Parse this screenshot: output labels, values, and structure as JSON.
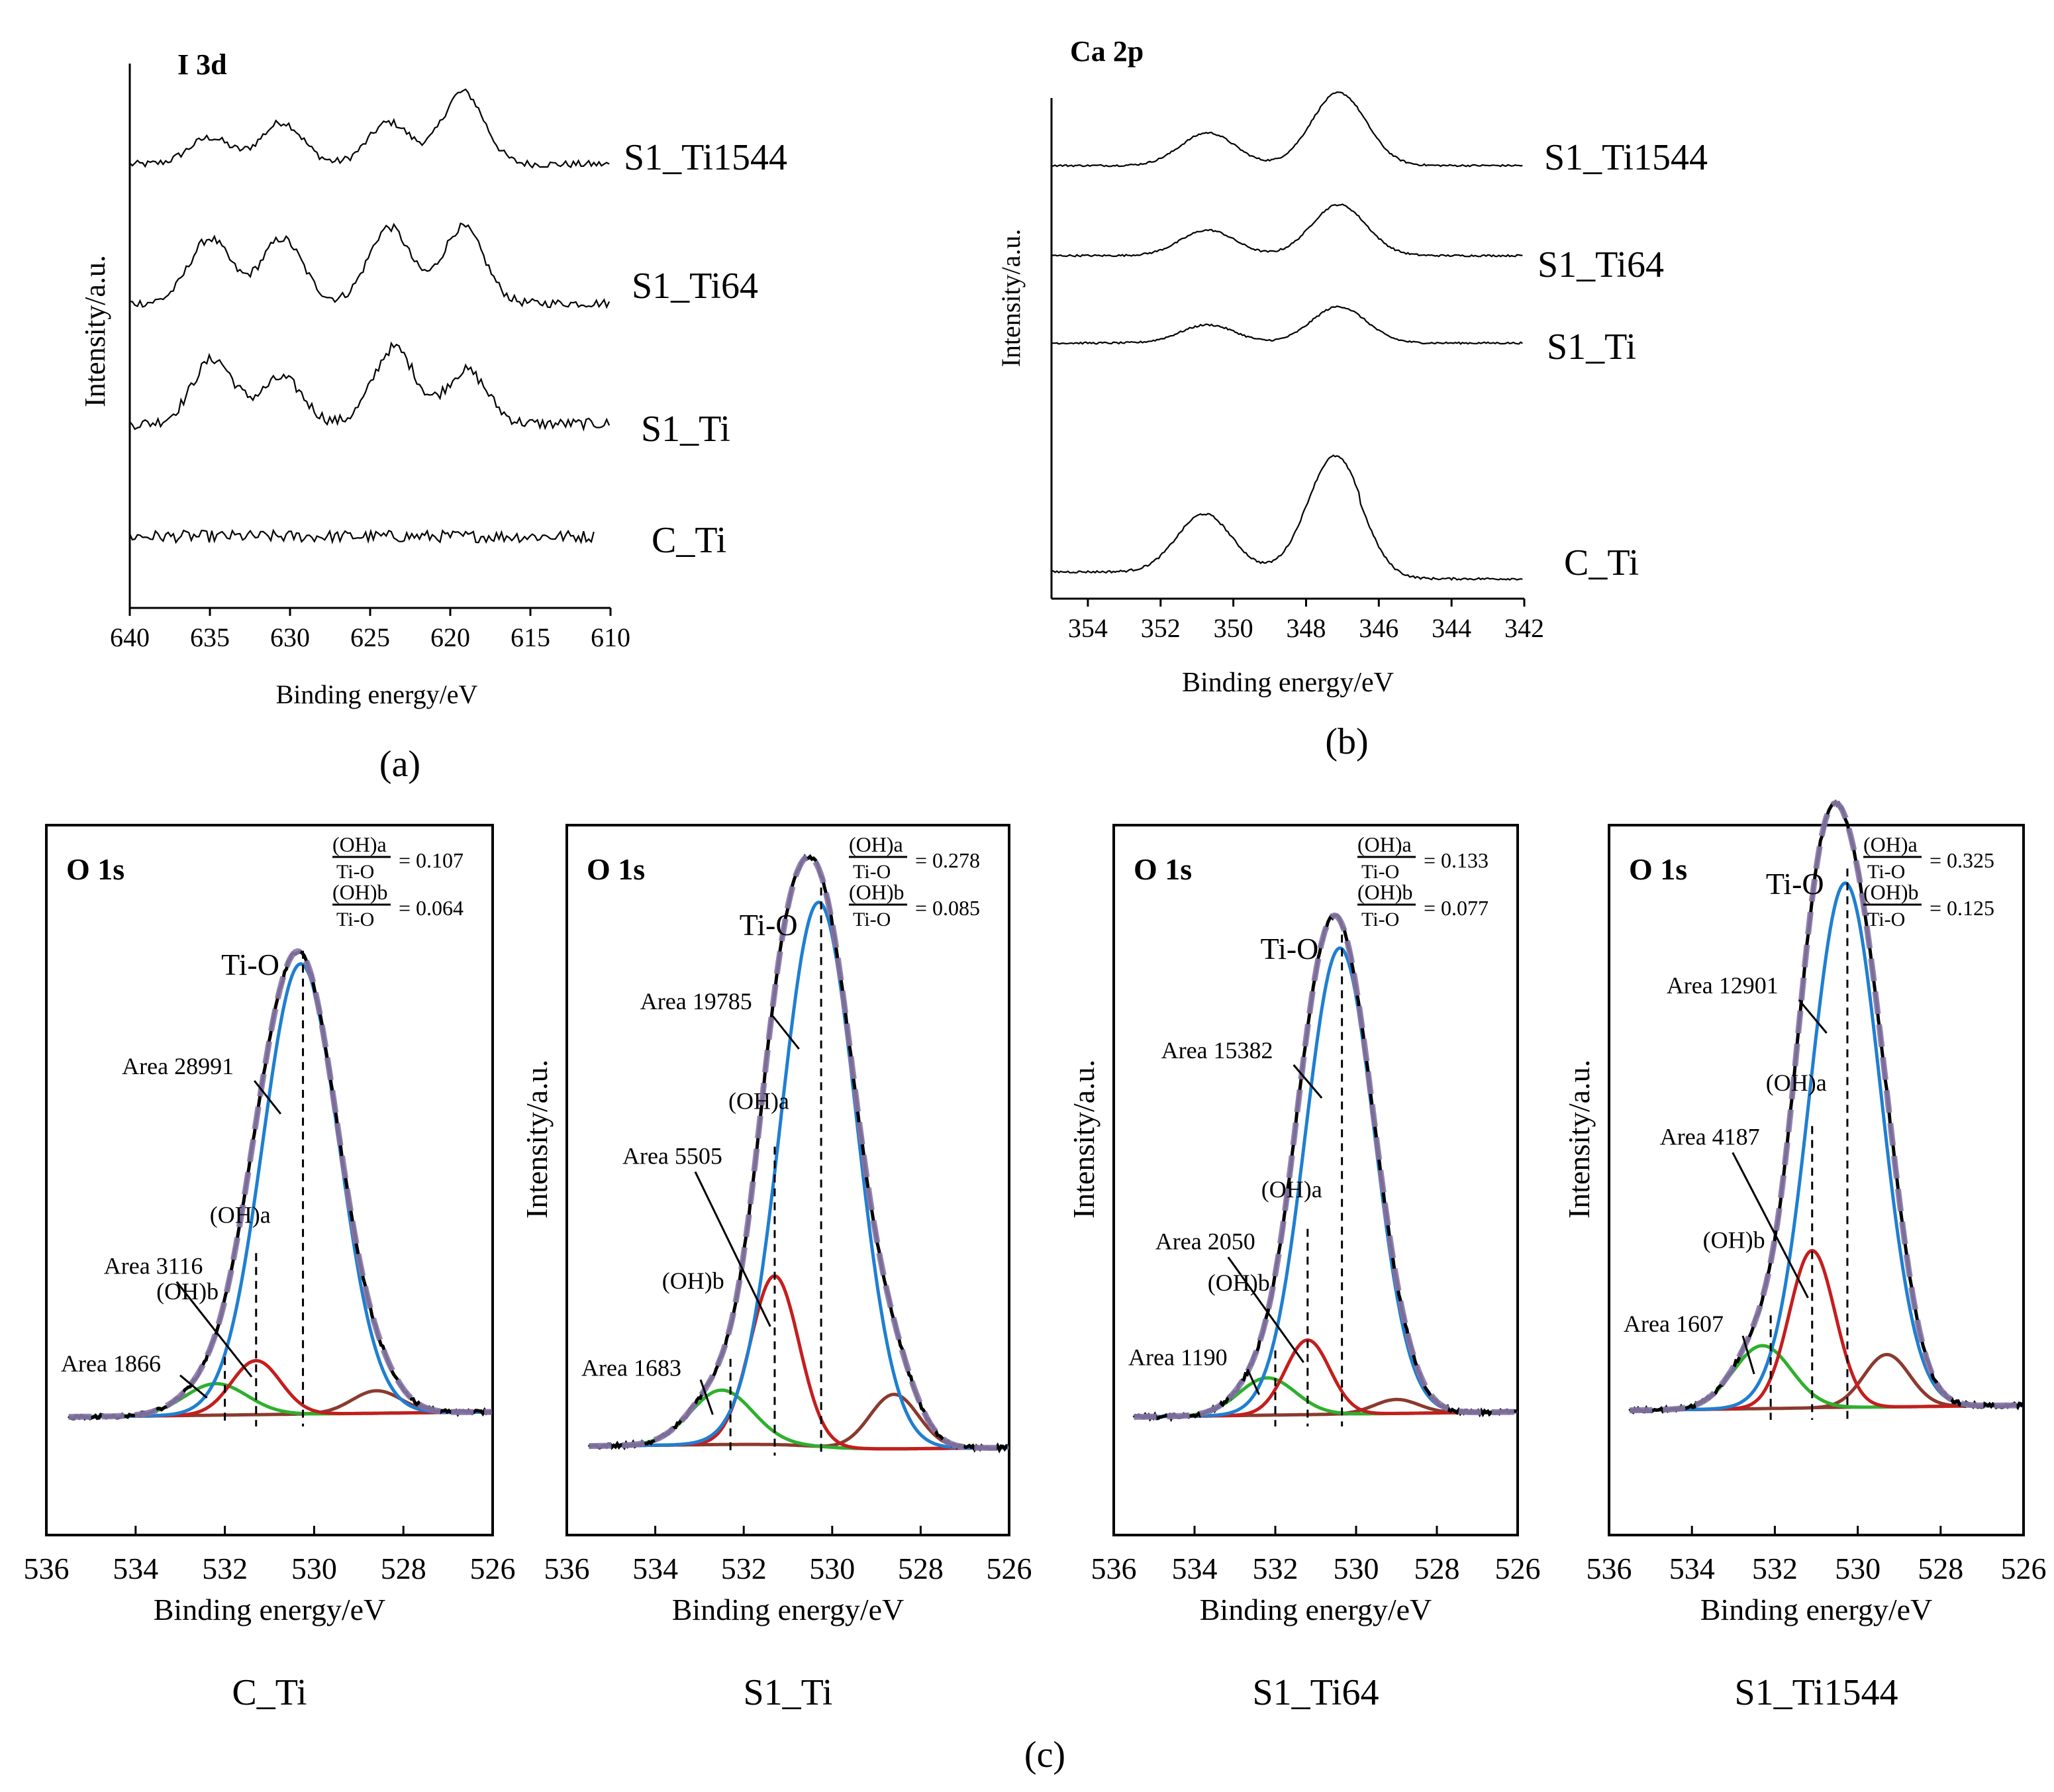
{
  "chart_data": [
    {
      "panel": "a",
      "type": "line",
      "subtitle_letter": "(a)",
      "title": "I 3d",
      "xlabel": "Binding energy/eV",
      "ylabel": "Intensity/a.u.",
      "xlim": [
        640,
        610
      ],
      "xticks": [
        "640",
        "635",
        "630",
        "625",
        "620",
        "615",
        "610"
      ],
      "series": [
        {
          "name": "S1_Ti1544",
          "x_end": 610,
          "peaks": [
            [
              635,
              0.35
            ],
            [
              630.5,
              0.55
            ],
            [
              623.8,
              0.55
            ],
            [
              619.2,
              0.95
            ]
          ],
          "noise": 0.06
        },
        {
          "name": "S1_Ti64",
          "x_end": 610,
          "peaks": [
            [
              635,
              0.85
            ],
            [
              630.5,
              0.85
            ],
            [
              623.8,
              1.0
            ],
            [
              619.2,
              1.0
            ]
          ],
          "noise": 0.07
        },
        {
          "name": "S1_Ti",
          "x_end": 610,
          "peaks": [
            [
              634.8,
              0.85
            ],
            [
              630.5,
              0.6
            ],
            [
              623.5,
              1.0
            ],
            [
              619.0,
              0.7
            ]
          ],
          "noise": 0.09
        },
        {
          "name": "C_Ti",
          "x_end": 611,
          "peaks": [],
          "noise": 0.1
        }
      ]
    },
    {
      "panel": "b",
      "type": "line",
      "subtitle_letter": "(b)",
      "title": "Ca 2p",
      "xlabel": "Binding energy/eV",
      "ylabel": "Intensity/a.u.",
      "xlim": [
        355,
        342
      ],
      "xticks": [
        "354",
        "352",
        "350",
        "348",
        "346",
        "344",
        "342"
      ],
      "series": [
        {
          "name": "S1_Ti1544",
          "peaks": [
            [
              350.7,
              0.45
            ],
            [
              347.1,
              1.0
            ]
          ]
        },
        {
          "name": "S1_Ti64",
          "peaks": [
            [
              350.7,
              0.35
            ],
            [
              347.1,
              0.7
            ]
          ]
        },
        {
          "name": "S1_Ti",
          "peaks": [
            [
              350.7,
              0.25
            ],
            [
              347.1,
              0.5
            ]
          ]
        },
        {
          "name": "C_Ti",
          "peaks": [
            [
              350.8,
              1.0
            ],
            [
              347.2,
              2.0
            ]
          ]
        }
      ]
    },
    {
      "panel": "c",
      "type": "line",
      "subtitle_letter": "(c)",
      "title": "O 1s",
      "xlabel": "Binding energy/eV",
      "ylabel": "Intensity/a.u.",
      "xlim": [
        536,
        526
      ],
      "xticks": [
        "536",
        "534",
        "532",
        "530",
        "528",
        "526"
      ],
      "tio_label": "Ti-O",
      "oha_label": "(OH)a",
      "ohb_label": "(OH)b",
      "ratio_num_a": "(OH)a",
      "ratio_num_b": "(OH)b",
      "ratio_den": "Ti-O",
      "samples": [
        {
          "name": "C_Ti",
          "ratio_a": "= 0.107",
          "ratio_b": "= 0.064",
          "area_tio": "Area 28991",
          "area_oha": "Area 3116",
          "area_ohb": "Area 1866",
          "tio": [
            530.3,
            1.0
          ],
          "oha": [
            531.3,
            0.12
          ],
          "ohb": [
            532.2,
            0.07
          ],
          "sub": [
            528.6,
            0.05
          ]
        },
        {
          "name": "S1_Ti",
          "ratio_a": "= 0.278",
          "ratio_b": "= 0.085",
          "area_tio": "Area 19785",
          "area_oha": "Area 5505",
          "area_ohb": "Area 1683",
          "tio": [
            530.3,
            1.0
          ],
          "oha": [
            531.3,
            0.31
          ],
          "ohb": [
            532.5,
            0.1
          ],
          "sub": [
            528.6,
            0.1
          ]
        },
        {
          "name": "S1_Ti64",
          "ratio_a": "= 0.133",
          "ratio_b": "= 0.077",
          "area_tio": "Area 15382",
          "area_oha": "Area 2050",
          "area_ohb": "Area 1190",
          "tio": [
            530.4,
            1.0
          ],
          "oha": [
            531.2,
            0.16
          ],
          "ohb": [
            532.2,
            0.08
          ],
          "sub": [
            529.0,
            0.03
          ]
        },
        {
          "name": "S1_Ti1544",
          "ratio_a": "= 0.325",
          "ratio_b": "= 0.125",
          "area_tio": "Area 12901",
          "area_oha": "Area 4187",
          "area_ohb": "Area 1607",
          "tio": [
            530.3,
            1.0
          ],
          "oha": [
            531.1,
            0.3
          ],
          "ohb": [
            532.3,
            0.12
          ],
          "sub": [
            529.3,
            0.1
          ]
        }
      ],
      "colors": {
        "tio": "#1f7fd1",
        "oha": "#c41e1e",
        "ohb": "#2db02d",
        "bg": "#8b3a2e",
        "env": "#8878a8",
        "data": "#000000"
      }
    }
  ]
}
